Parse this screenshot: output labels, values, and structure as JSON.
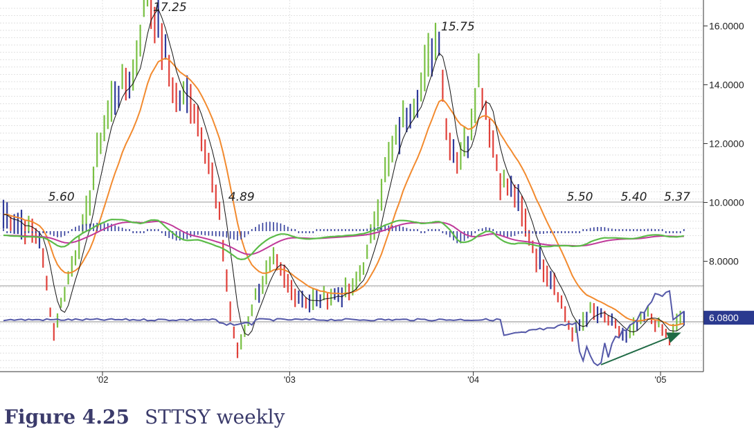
{
  "caption": {
    "figure_label": "Figure 4.25",
    "title": "STTSY weekly"
  },
  "colors": {
    "up": "#79c043",
    "down": "#e0403a",
    "neutral": "#2f3a9a",
    "sma_fast": "#111111",
    "sma_slow": "#f28a2e",
    "macd": "#5bbb48",
    "signal": "#c0399a",
    "hist": "#2f3a9a",
    "indicator": "#5458a8",
    "arrow": "#1f6a45",
    "price_box": "#2b3a8f"
  },
  "chart_data": {
    "type": "line",
    "panels": [
      "price",
      "macd",
      "indicator"
    ],
    "x_tick_labels": [
      "'02",
      "'03",
      "'04",
      "'05"
    ],
    "x_ticks_at": [
      27.5,
      79.5,
      130.5,
      182.5
    ],
    "y_tick_labels": [
      "16.0000",
      "14.0000",
      "12.0000",
      "10.0000",
      "8.0000"
    ],
    "y_ticks": [
      16,
      14,
      12,
      10,
      8
    ],
    "ylim": [
      4,
      18
    ],
    "price_label": "6.0800",
    "annotations": [
      {
        "text": "17.25",
        "x": 40,
        "y": 17.25
      },
      {
        "text": "5.60",
        "x": 14,
        "y": 5.6
      },
      {
        "text": "4.89",
        "x": 64,
        "y": 4.89
      },
      {
        "text": "15.75",
        "x": 120,
        "y": 15.75
      },
      {
        "text": "5.50",
        "x": 158,
        "y": 5.5
      },
      {
        "text": "5.40",
        "x": 173,
        "y": 5.4
      },
      {
        "text": "5.37",
        "x": 185,
        "y": 5.37
      }
    ],
    "price_anchors": [
      [
        0,
        9.6
      ],
      [
        7,
        9.1
      ],
      [
        10,
        8.8
      ],
      [
        14,
        5.6
      ],
      [
        17,
        7.0
      ],
      [
        23,
        9.5
      ],
      [
        27,
        12.2
      ],
      [
        31,
        13.7
      ],
      [
        36,
        14.3
      ],
      [
        40,
        17.25
      ],
      [
        44,
        15.5
      ],
      [
        48,
        13.5
      ],
      [
        52,
        13.6
      ],
      [
        56,
        12.0
      ],
      [
        60,
        9.5
      ],
      [
        63,
        6.3
      ],
      [
        65,
        4.89
      ],
      [
        70,
        6.8
      ],
      [
        75,
        8.0
      ],
      [
        80,
        7.0
      ],
      [
        85,
        6.6
      ],
      [
        90,
        6.8
      ],
      [
        97,
        7.0
      ],
      [
        101,
        8.2
      ],
      [
        106,
        11.0
      ],
      [
        111,
        12.8
      ],
      [
        116,
        13.9
      ],
      [
        119,
        15.2
      ],
      [
        121,
        15.75
      ],
      [
        123,
        12.5
      ],
      [
        126,
        11.5
      ],
      [
        129,
        12.1
      ],
      [
        132,
        14.4
      ],
      [
        135,
        12.6
      ],
      [
        138,
        10.8
      ],
      [
        142,
        10.3
      ],
      [
        148,
        8.2
      ],
      [
        153,
        7.3
      ],
      [
        158,
        5.5
      ],
      [
        163,
        6.3
      ],
      [
        168,
        6.0
      ],
      [
        173,
        5.4
      ],
      [
        179,
        6.2
      ],
      [
        185,
        5.37
      ],
      [
        188,
        6.08
      ]
    ],
    "series": [
      {
        "name": "",
        "role": "weekly-bars"
      },
      {
        "name": "",
        "role": "fast-moving-average"
      },
      {
        "name": "",
        "role": "slow-moving-average"
      },
      {
        "name": "",
        "role": "macd-line"
      },
      {
        "name": "",
        "role": "signal-line"
      },
      {
        "name": "",
        "role": "histogram"
      },
      {
        "name": "",
        "role": "lower-indicator"
      }
    ]
  }
}
